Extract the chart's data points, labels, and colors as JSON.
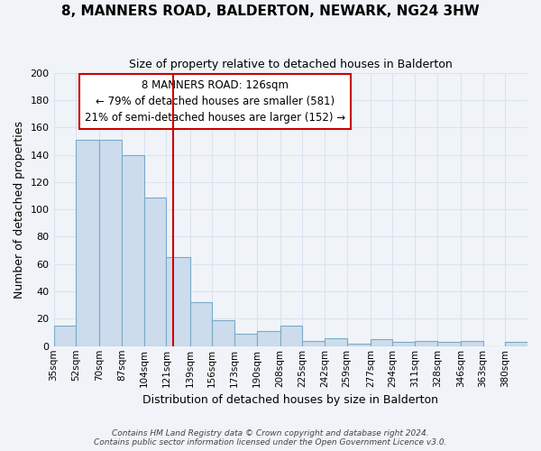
{
  "title": "8, MANNERS ROAD, BALDERTON, NEWARK, NG24 3HW",
  "subtitle": "Size of property relative to detached houses in Balderton",
  "xlabel": "Distribution of detached houses by size in Balderton",
  "ylabel": "Number of detached properties",
  "bar_labels": [
    "35sqm",
    "52sqm",
    "70sqm",
    "87sqm",
    "104sqm",
    "121sqm",
    "139sqm",
    "156sqm",
    "173sqm",
    "190sqm",
    "208sqm",
    "225sqm",
    "242sqm",
    "259sqm",
    "277sqm",
    "294sqm",
    "311sqm",
    "328sqm",
    "346sqm",
    "363sqm",
    "380sqm"
  ],
  "bar_heights": [
    15,
    151,
    151,
    140,
    109,
    65,
    32,
    19,
    9,
    11,
    15,
    4,
    6,
    2,
    5,
    3,
    4,
    3,
    4,
    0,
    3
  ],
  "bar_edges": [
    35,
    52,
    70,
    87,
    104,
    121,
    139,
    156,
    173,
    190,
    208,
    225,
    242,
    259,
    277,
    294,
    311,
    328,
    346,
    363,
    380,
    397
  ],
  "bar_color": "#ccdcec",
  "bar_edgecolor": "#7aaac8",
  "vline_x": 126,
  "vline_color": "#cc0000",
  "ylim": [
    0,
    200
  ],
  "yticks": [
    0,
    20,
    40,
    60,
    80,
    100,
    120,
    140,
    160,
    180,
    200
  ],
  "annotation_box_text": "8 MANNERS ROAD: 126sqm\n← 79% of detached houses are smaller (581)\n21% of semi-detached houses are larger (152) →",
  "footer_line1": "Contains HM Land Registry data © Crown copyright and database right 2024.",
  "footer_line2": "Contains public sector information licensed under the Open Government Licence v3.0.",
  "background_color": "#f0f4f8",
  "grid_color": "#d8e4f0"
}
